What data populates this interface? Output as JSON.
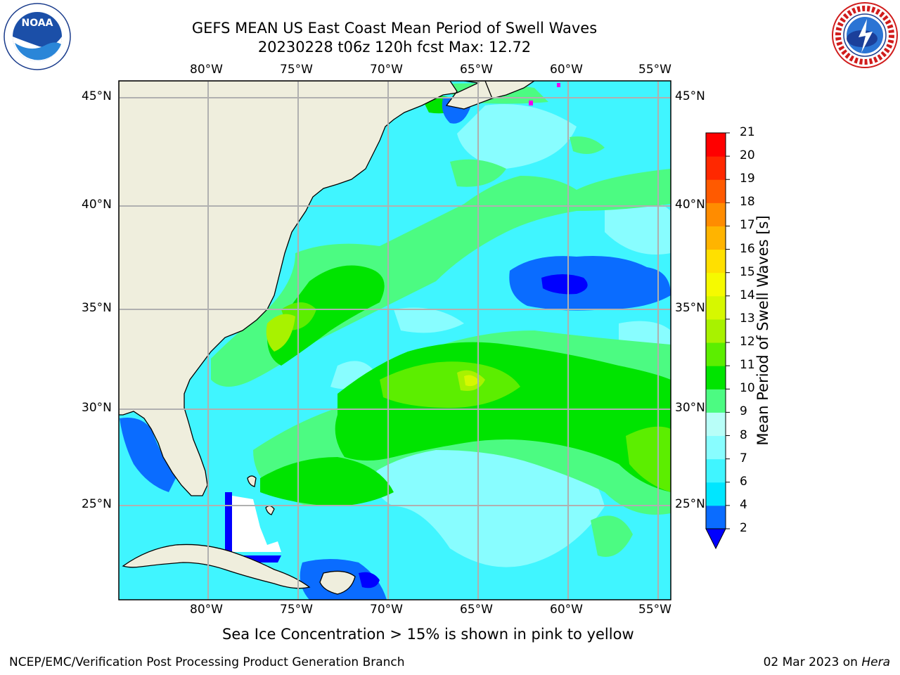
{
  "title": {
    "line1": "GEFS MEAN US East Coast Mean Period of Swell Waves",
    "line2": "20230228 t06z 120h fcst   Max: 12.72"
  },
  "map": {
    "lon_labels": [
      "80°W",
      "75°W",
      "70°W",
      "65°W",
      "60°W",
      "55°W"
    ],
    "lat_labels": [
      "45°N",
      "40°N",
      "35°N",
      "30°N",
      "25°N"
    ],
    "gridlines": true,
    "land_color": "#efeedd",
    "coast_color": "#000000"
  },
  "colorbar": {
    "title": "Mean Period of Swell Waves [s]",
    "levels": [
      "2",
      "4",
      "6",
      "7",
      "8",
      "9",
      "10",
      "11",
      "12",
      "13",
      "14",
      "15",
      "16",
      "17",
      "18",
      "19",
      "20",
      "21"
    ],
    "colors": [
      "#0000ff",
      "#0a6cff",
      "#00e6ff",
      "#40f5ff",
      "#88fdff",
      "#b8fef8",
      "#4cfb82",
      "#00e400",
      "#5cee00",
      "#a8f200",
      "#d6f800",
      "#f6fa00",
      "#ffe000",
      "#ffb400",
      "#ff8c00",
      "#ff5a00",
      "#ff2800",
      "#ff0000"
    ],
    "extend": "min"
  },
  "notes": {
    "sea_ice": "Sea Ice Concentration > 15% is shown in pink to yellow",
    "credit": "NCEP/EMC/Verification Post Processing Product Generation Branch",
    "date": "02 Mar 2023 on",
    "machine": "Hera"
  },
  "logos": {
    "left_text": "NOAA",
    "right_text": "NATIONAL WEATHER SERVICE"
  }
}
